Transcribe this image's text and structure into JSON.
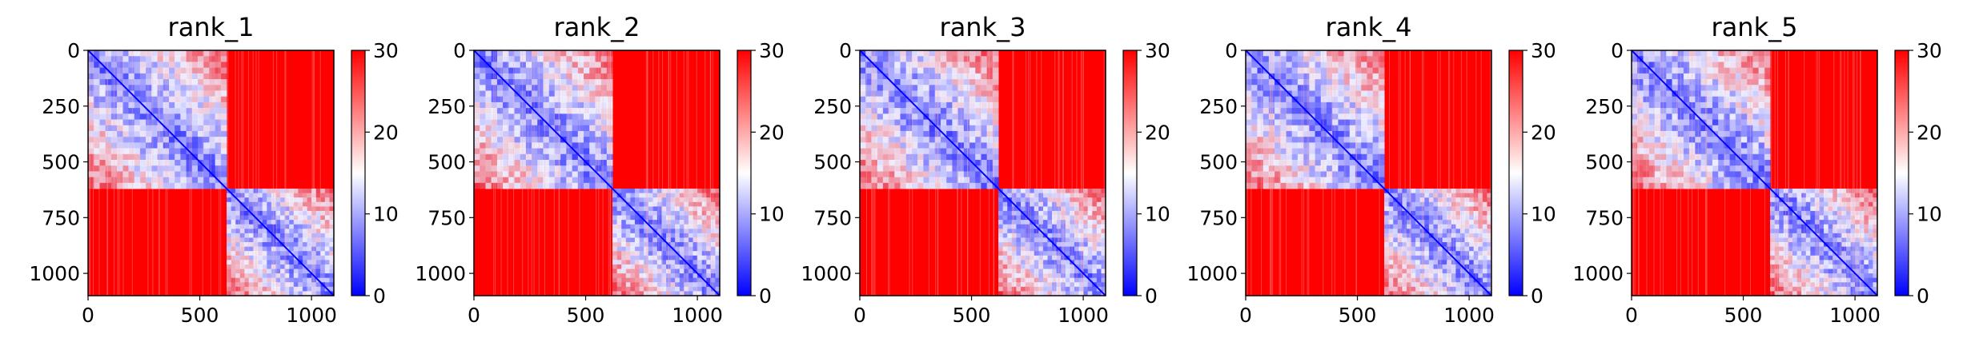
{
  "chart_data": [
    {
      "type": "heatmap",
      "title": "rank_1",
      "xlabel": "",
      "ylabel": "",
      "xlim": [
        0,
        1100
      ],
      "ylim": [
        1100,
        0
      ],
      "xticks": [
        0,
        500,
        1000
      ],
      "yticks": [
        0,
        250,
        500,
        750,
        1000
      ],
      "colorbar": {
        "min": 0,
        "max": 30,
        "ticks": [
          0,
          10,
          20,
          30
        ],
        "colormap": "bwr"
      },
      "blocks": [
        {
          "range": [
            0,
            620
          ],
          "description": "low-value (blue) block"
        },
        {
          "range": [
            620,
            1100
          ],
          "description": "low-value (blue) block"
        }
      ],
      "off_block_value": 30
    },
    {
      "type": "heatmap",
      "title": "rank_2",
      "xlabel": "",
      "ylabel": "",
      "xlim": [
        0,
        1100
      ],
      "ylim": [
        1100,
        0
      ],
      "xticks": [
        0,
        500,
        1000
      ],
      "yticks": [
        0,
        250,
        500,
        750,
        1000
      ],
      "colorbar": {
        "min": 0,
        "max": 30,
        "ticks": [
          0,
          10,
          20,
          30
        ],
        "colormap": "bwr"
      },
      "blocks": [
        {
          "range": [
            0,
            620
          ],
          "description": "low-value (blue) block"
        },
        {
          "range": [
            620,
            1100
          ],
          "description": "low-value (blue) block"
        }
      ],
      "off_block_value": 30
    },
    {
      "type": "heatmap",
      "title": "rank_3",
      "xlabel": "",
      "ylabel": "",
      "xlim": [
        0,
        1100
      ],
      "ylim": [
        1100,
        0
      ],
      "xticks": [
        0,
        500,
        1000
      ],
      "yticks": [
        0,
        250,
        500,
        750,
        1000
      ],
      "colorbar": {
        "min": 0,
        "max": 30,
        "ticks": [
          0,
          10,
          20,
          30
        ],
        "colormap": "bwr"
      },
      "blocks": [
        {
          "range": [
            0,
            620
          ],
          "description": "low-value (blue) block"
        },
        {
          "range": [
            620,
            1100
          ],
          "description": "low-value (blue) block"
        }
      ],
      "off_block_value": 30
    },
    {
      "type": "heatmap",
      "title": "rank_4",
      "xlabel": "",
      "ylabel": "",
      "xlim": [
        0,
        1100
      ],
      "ylim": [
        1100,
        0
      ],
      "xticks": [
        0,
        500,
        1000
      ],
      "yticks": [
        0,
        250,
        500,
        750,
        1000
      ],
      "colorbar": {
        "min": 0,
        "max": 30,
        "ticks": [
          0,
          10,
          20,
          30
        ],
        "colormap": "bwr"
      },
      "blocks": [
        {
          "range": [
            0,
            620
          ],
          "description": "low-value (blue) block"
        },
        {
          "range": [
            620,
            1100
          ],
          "description": "low-value (blue) block"
        }
      ],
      "off_block_value": 30
    },
    {
      "type": "heatmap",
      "title": "rank_5",
      "xlabel": "",
      "ylabel": "",
      "xlim": [
        0,
        1100
      ],
      "ylim": [
        1100,
        0
      ],
      "xticks": [
        0,
        500,
        1000
      ],
      "yticks": [
        0,
        250,
        500,
        750,
        1000
      ],
      "colorbar": {
        "min": 0,
        "max": 30,
        "ticks": [
          0,
          10,
          20,
          30
        ],
        "colormap": "bwr"
      },
      "blocks": [
        {
          "range": [
            0,
            620
          ],
          "description": "low-value (blue) block"
        },
        {
          "range": [
            620,
            1100
          ],
          "description": "low-value (blue) block"
        }
      ],
      "off_block_value": 30
    }
  ],
  "colors": {
    "low": "#0000ff",
    "mid": "#ffffff",
    "high": "#ff0000"
  }
}
